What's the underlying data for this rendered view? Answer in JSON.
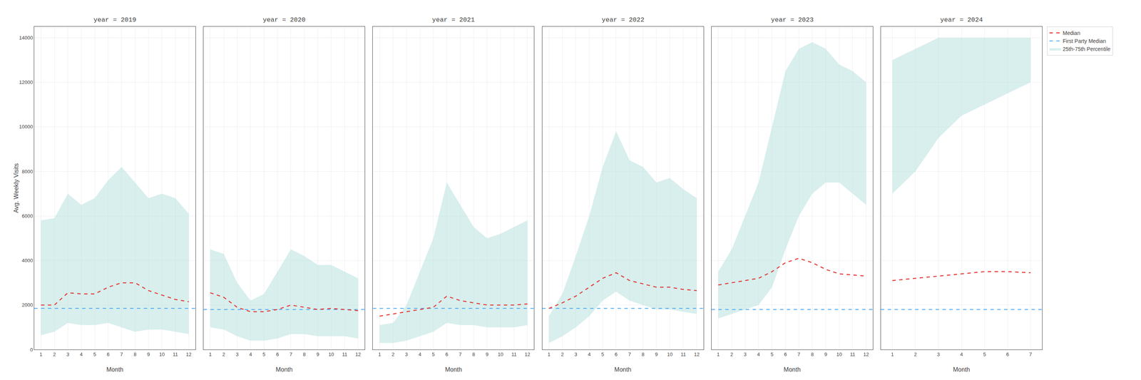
{
  "chart_data": [
    {
      "type": "line",
      "title": "year = 2019",
      "xlabel": "Month",
      "ylabel": "Avg. Weekly Visits",
      "x": [
        1,
        2,
        3,
        4,
        5,
        6,
        7,
        8,
        9,
        10,
        11,
        12
      ],
      "xlim": [
        0.5,
        12.5
      ],
      "xticks": [
        1,
        2,
        3,
        4,
        5,
        6,
        7,
        8,
        9,
        10,
        11,
        12
      ],
      "ylim": [
        0,
        14500
      ],
      "yticks": [
        0,
        2000,
        4000,
        6000,
        8000,
        10000,
        12000,
        14000
      ],
      "grid": true,
      "series": [
        {
          "name": "Median",
          "type": "line",
          "color": "#e53935",
          "line_style": "dashed",
          "values": [
            2000,
            2000,
            2550,
            2500,
            2500,
            2800,
            3000,
            3000,
            2650,
            2450,
            2250,
            2150
          ]
        },
        {
          "name": "First Party Median",
          "type": "hline",
          "color": "#42a5f5",
          "line_style": "dashed",
          "value": 1850
        },
        {
          "name": "25th-75th Percentile",
          "type": "band",
          "color": "#b2dfdb",
          "low": [
            650,
            800,
            1200,
            1100,
            1100,
            1200,
            1000,
            800,
            900,
            900,
            800,
            700
          ],
          "high": [
            5800,
            5900,
            7000,
            6500,
            6800,
            7600,
            8200,
            7500,
            6800,
            7000,
            6800,
            6100
          ]
        }
      ]
    },
    {
      "type": "line",
      "title": "year = 2020",
      "xlabel": "Month",
      "tick_labels": "x",
      "x": [
        1,
        2,
        3,
        4,
        5,
        6,
        7,
        8,
        9,
        10,
        11,
        12
      ],
      "xlim": [
        0.5,
        12.5
      ],
      "xticks": [
        1,
        2,
        3,
        4,
        5,
        6,
        7,
        8,
        9,
        10,
        11,
        12
      ],
      "ylim": [
        0,
        14500
      ],
      "yticks": [
        0,
        2000,
        4000,
        6000,
        8000,
        10000,
        12000,
        14000
      ],
      "grid": true,
      "series": [
        {
          "name": "Median",
          "type": "line",
          "color": "#e53935",
          "line_style": "dashed",
          "values": [
            2550,
            2350,
            1900,
            1700,
            1700,
            1800,
            2000,
            1900,
            1800,
            1850,
            1800,
            1750
          ]
        },
        {
          "name": "First Party Median",
          "type": "hline",
          "color": "#42a5f5",
          "line_style": "dashed",
          "value": 1800
        },
        {
          "name": "25th-75th Percentile",
          "type": "band",
          "color": "#b2dfdb",
          "low": [
            1000,
            900,
            600,
            400,
            400,
            500,
            700,
            700,
            600,
            600,
            600,
            500
          ],
          "high": [
            4500,
            4300,
            3000,
            2200,
            2500,
            3500,
            4500,
            4200,
            3800,
            3800,
            3500,
            3200
          ]
        }
      ]
    },
    {
      "type": "line",
      "title": "year = 2021",
      "xlabel": "Month",
      "tick_labels": "x",
      "x": [
        1,
        2,
        3,
        4,
        5,
        6,
        7,
        8,
        9,
        10,
        11,
        12
      ],
      "xlim": [
        0.5,
        12.5
      ],
      "xticks": [
        1,
        2,
        3,
        4,
        5,
        6,
        7,
        8,
        9,
        10,
        11,
        12
      ],
      "ylim": [
        0,
        14500
      ],
      "yticks": [
        0,
        2000,
        4000,
        6000,
        8000,
        10000,
        12000,
        14000
      ],
      "grid": true,
      "series": [
        {
          "name": "Median",
          "type": "line",
          "color": "#e53935",
          "line_style": "dashed",
          "values": [
            1500,
            1600,
            1700,
            1800,
            1900,
            2400,
            2200,
            2100,
            2000,
            2000,
            2000,
            2050
          ]
        },
        {
          "name": "First Party Median",
          "type": "hline",
          "color": "#42a5f5",
          "line_style": "dashed",
          "value": 1850
        },
        {
          "name": "25th-75th Percentile",
          "type": "band",
          "color": "#b2dfdb",
          "low": [
            300,
            300,
            400,
            600,
            800,
            1200,
            1100,
            1100,
            1000,
            1000,
            1000,
            1100
          ],
          "high": [
            1100,
            1200,
            2000,
            3500,
            5000,
            7500,
            6500,
            5500,
            5000,
            5200,
            5500,
            5800
          ]
        }
      ]
    },
    {
      "type": "line",
      "title": "year = 2022",
      "xlabel": "Month",
      "tick_labels": "x",
      "x": [
        1,
        2,
        3,
        4,
        5,
        6,
        7,
        8,
        9,
        10,
        11,
        12
      ],
      "xlim": [
        0.5,
        12.5
      ],
      "xticks": [
        1,
        2,
        3,
        4,
        5,
        6,
        7,
        8,
        9,
        10,
        11,
        12
      ],
      "ylim": [
        0,
        14500
      ],
      "yticks": [
        0,
        2000,
        4000,
        6000,
        8000,
        10000,
        12000,
        14000
      ],
      "grid": true,
      "series": [
        {
          "name": "Median",
          "type": "line",
          "color": "#e53935",
          "line_style": "dashed",
          "values": [
            1850,
            2100,
            2400,
            2800,
            3200,
            3450,
            3100,
            2950,
            2800,
            2800,
            2700,
            2650
          ]
        },
        {
          "name": "First Party Median",
          "type": "hline",
          "color": "#42a5f5",
          "line_style": "dashed",
          "value": 1850
        },
        {
          "name": "25th-75th Percentile",
          "type": "band",
          "color": "#b2dfdb",
          "low": [
            300,
            600,
            1000,
            1500,
            2200,
            2600,
            2200,
            2000,
            1800,
            1800,
            1700,
            1600
          ],
          "high": [
            1500,
            2500,
            4200,
            6000,
            8200,
            9800,
            8500,
            8200,
            7500,
            7700,
            7200,
            6800
          ]
        }
      ]
    },
    {
      "type": "line",
      "title": "year = 2023",
      "xlabel": "Month",
      "tick_labels": "x",
      "x": [
        1,
        2,
        3,
        4,
        5,
        6,
        7,
        8,
        9,
        10,
        11,
        12
      ],
      "xlim": [
        0.5,
        12.5
      ],
      "xticks": [
        1,
        2,
        3,
        4,
        5,
        6,
        7,
        8,
        9,
        10,
        11,
        12
      ],
      "ylim": [
        0,
        14500
      ],
      "yticks": [
        0,
        2000,
        4000,
        6000,
        8000,
        10000,
        12000,
        14000
      ],
      "grid": true,
      "series": [
        {
          "name": "Median",
          "type": "line",
          "color": "#e53935",
          "line_style": "dashed",
          "values": [
            2900,
            3000,
            3100,
            3200,
            3500,
            3900,
            4100,
            3900,
            3600,
            3400,
            3350,
            3300
          ]
        },
        {
          "name": "First Party Median",
          "type": "hline",
          "color": "#42a5f5",
          "line_style": "dashed",
          "value": 1800
        },
        {
          "name": "25th-75th Percentile",
          "type": "band",
          "color": "#b2dfdb",
          "low": [
            1400,
            1600,
            1800,
            2000,
            2800,
            4500,
            6000,
            7000,
            7500,
            7500,
            7000,
            6500
          ],
          "high": [
            3500,
            4500,
            6000,
            7500,
            10000,
            12500,
            13500,
            13800,
            13500,
            12800,
            12500,
            12000
          ]
        }
      ]
    },
    {
      "type": "line",
      "title": "year = 2024",
      "xlabel": "Month",
      "tick_labels": "x",
      "legend": "upper right",
      "x": [
        1,
        2,
        3,
        4,
        5,
        6,
        7
      ],
      "xlim": [
        0.5,
        7.5
      ],
      "xticks": [
        1,
        2,
        3,
        4,
        5,
        6,
        7
      ],
      "ylim": [
        0,
        14500
      ],
      "yticks": [
        0,
        2000,
        4000,
        6000,
        8000,
        10000,
        12000,
        14000
      ],
      "grid": true,
      "series": [
        {
          "name": "Median",
          "type": "line",
          "color": "#e53935",
          "line_style": "dashed",
          "values": [
            3100,
            3200,
            3300,
            3400,
            3500,
            3500,
            3450
          ]
        },
        {
          "name": "First Party Median",
          "type": "hline",
          "color": "#42a5f5",
          "line_style": "dashed",
          "value": 1800
        },
        {
          "name": "25th-75th Percentile",
          "type": "band",
          "color": "#b2dfdb",
          "low": [
            7000,
            8000,
            9500,
            10500,
            11000,
            11500,
            12000
          ],
          "high": [
            13000,
            13500,
            14000,
            14000,
            14000,
            14000,
            14000
          ]
        }
      ]
    }
  ]
}
